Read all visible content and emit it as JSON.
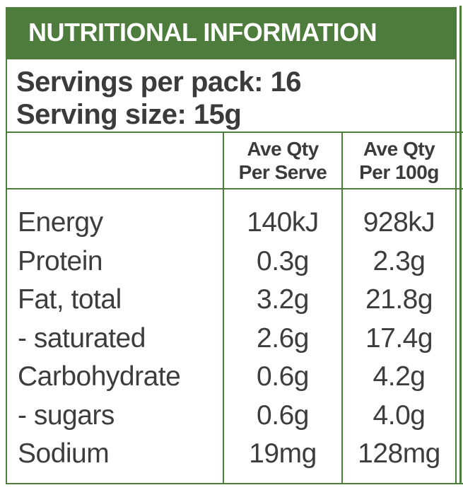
{
  "colors": {
    "green": "#4e7c3c",
    "text_dark": "#3b3b3b",
    "title_text": "#ffffff",
    "background": "#ffffff"
  },
  "title": "NUTRITIONAL INFORMATION",
  "serving_info": {
    "servings_per_pack": {
      "label": "Servings per pack:",
      "value": "16"
    },
    "serving_size": {
      "label": "Serving size:",
      "value": "15g"
    }
  },
  "table": {
    "column_headers": {
      "per_serve": {
        "line1": "Ave Qty",
        "line2": "Per Serve"
      },
      "per_100g": {
        "line1": "Ave Qty",
        "line2": "Per 100g"
      }
    },
    "rows": [
      {
        "nutrient": "Energy",
        "per_serve": "140kJ",
        "per_100g": "928kJ"
      },
      {
        "nutrient": "Protein",
        "per_serve": "0.3g",
        "per_100g": "2.3g"
      },
      {
        "nutrient": "Fat, total",
        "per_serve": "3.2g",
        "per_100g": "21.8g"
      },
      {
        "nutrient": "- saturated",
        "per_serve": "2.6g",
        "per_100g": "17.4g"
      },
      {
        "nutrient": "Carbohydrate",
        "per_serve": "0.6g",
        "per_100g": "4.2g"
      },
      {
        "nutrient": "- sugars",
        "per_serve": "0.6g",
        "per_100g": "4.0g"
      },
      {
        "nutrient": "Sodium",
        "per_serve": "19mg",
        "per_100g": "128mg"
      }
    ]
  }
}
